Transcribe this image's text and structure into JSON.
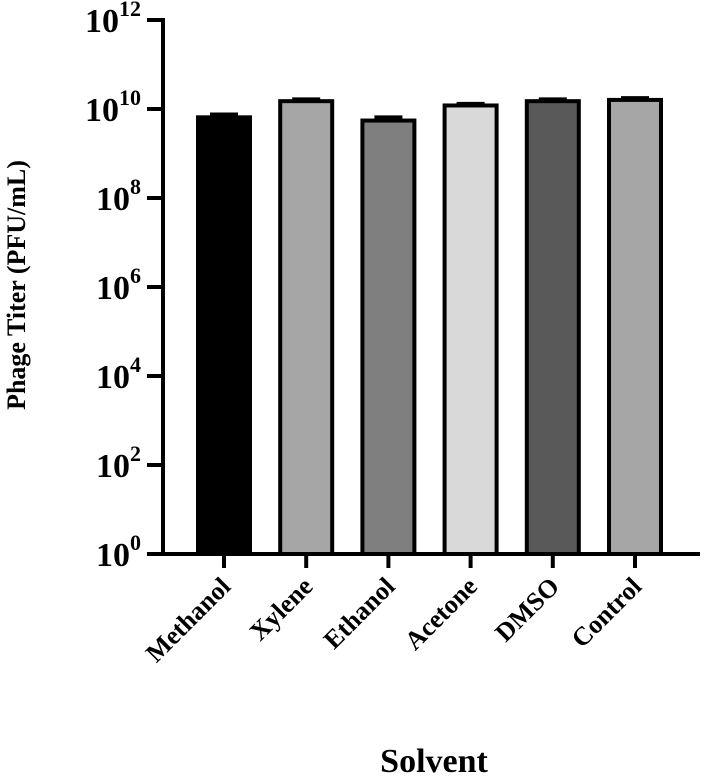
{
  "chart_data": {
    "type": "bar",
    "title": "",
    "xlabel": "Solvent",
    "ylabel": "Phage Titer (PFU/mL)",
    "yscale": "log10",
    "ylim": [
      1,
      1000000000000
    ],
    "y_ticks": [
      {
        "value": 1,
        "base": "10",
        "exp": "0"
      },
      {
        "value": 100,
        "base": "10",
        "exp": "2"
      },
      {
        "value": 10000,
        "base": "10",
        "exp": "4"
      },
      {
        "value": 1000000,
        "base": "10",
        "exp": "6"
      },
      {
        "value": 100000000,
        "base": "10",
        "exp": "8"
      },
      {
        "value": 10000000000,
        "base": "10",
        "exp": "10"
      },
      {
        "value": 1000000000000,
        "base": "10",
        "exp": "12"
      }
    ],
    "categories": [
      "Methanol",
      "Xylene",
      "Ethanol",
      "Acetone",
      "DMSO",
      "Control"
    ],
    "values": [
      6500000000,
      15000000000,
      5500000000,
      12000000000,
      15000000000,
      16000000000
    ],
    "error_upper": [
      7500000000,
      16500000000,
      6500000000,
      13000000000,
      16500000000,
      17500000000
    ],
    "bar_colors": [
      "#000000",
      "#a6a6a6",
      "#7f7f7f",
      "#d9d9d9",
      "#595959",
      "#a6a6a6"
    ],
    "bar_edge_color": "#000000",
    "grid": false,
    "legend": "none"
  }
}
